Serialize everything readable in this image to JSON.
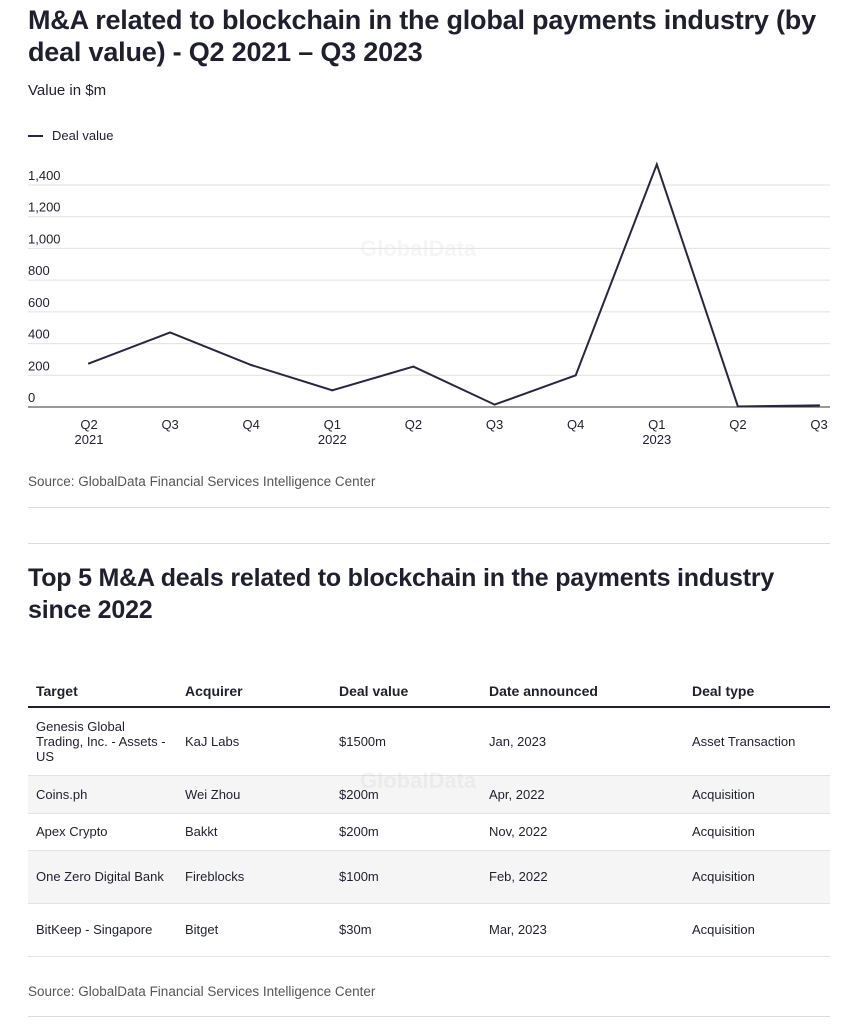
{
  "chart_title": "M&A related to blockchain in the global payments industry (by deal value) - Q2 2021 – Q3 2023",
  "chart_subtitle": "Value in $m",
  "watermark": "GlobalData",
  "source": "Source: GlobalData Financial Services Intelligence Center",
  "colors": {
    "line": "#2b2540",
    "grid": "#e0e0e0",
    "axis": "#333333",
    "text": "#1f1f2e"
  },
  "chart_data": {
    "type": "line",
    "title": "M&A related to blockchain in the global payments industry (by deal value) - Q2 2021 – Q3 2023",
    "ylabel": "Value in $m",
    "xlabel": "",
    "ylim": [
      0,
      1400
    ],
    "yticks": [
      0,
      200,
      400,
      600,
      800,
      1000,
      1200,
      1400
    ],
    "categories": [
      {
        "q": "Q2",
        "year": "2021"
      },
      {
        "q": "Q3",
        "year": ""
      },
      {
        "q": "Q4",
        "year": ""
      },
      {
        "q": "Q1",
        "year": "2022"
      },
      {
        "q": "Q2",
        "year": ""
      },
      {
        "q": "Q3",
        "year": ""
      },
      {
        "q": "Q4",
        "year": ""
      },
      {
        "q": "Q1",
        "year": "2023"
      },
      {
        "q": "Q2",
        "year": ""
      },
      {
        "q": "Q3",
        "year": ""
      }
    ],
    "series": [
      {
        "name": "Deal value",
        "values": [
          275,
          470,
          265,
          105,
          255,
          15,
          200,
          1530,
          3,
          10
        ]
      }
    ],
    "legend": "top-left",
    "grid": true
  },
  "table": {
    "title": "Top 5 M&A deals related to blockchain in the payments industry since 2022",
    "headers": [
      "Target",
      "Acquirer",
      "Deal value",
      "Date announced",
      "Deal type"
    ],
    "rows": [
      [
        "Genesis Global Trading, Inc. - Assets - US",
        "KaJ Labs",
        "$1500m",
        "Jan, 2023",
        "Asset Transaction"
      ],
      [
        "Coins.ph",
        "Wei Zhou",
        "$200m",
        "Apr, 2022",
        "Acquisition"
      ],
      [
        "Apex Crypto",
        "Bakkt",
        "$200m",
        "Nov, 2022",
        "Acquisition"
      ],
      [
        "One Zero Digital Bank",
        "Fireblocks",
        "$100m",
        "Feb, 2022",
        "Acquisition"
      ],
      [
        "BitKeep - Singapore",
        "Bitget",
        "$30m",
        "Mar, 2023",
        "Acquisition"
      ]
    ],
    "source": "Source: GlobalData Financial Services Intelligence Center"
  }
}
